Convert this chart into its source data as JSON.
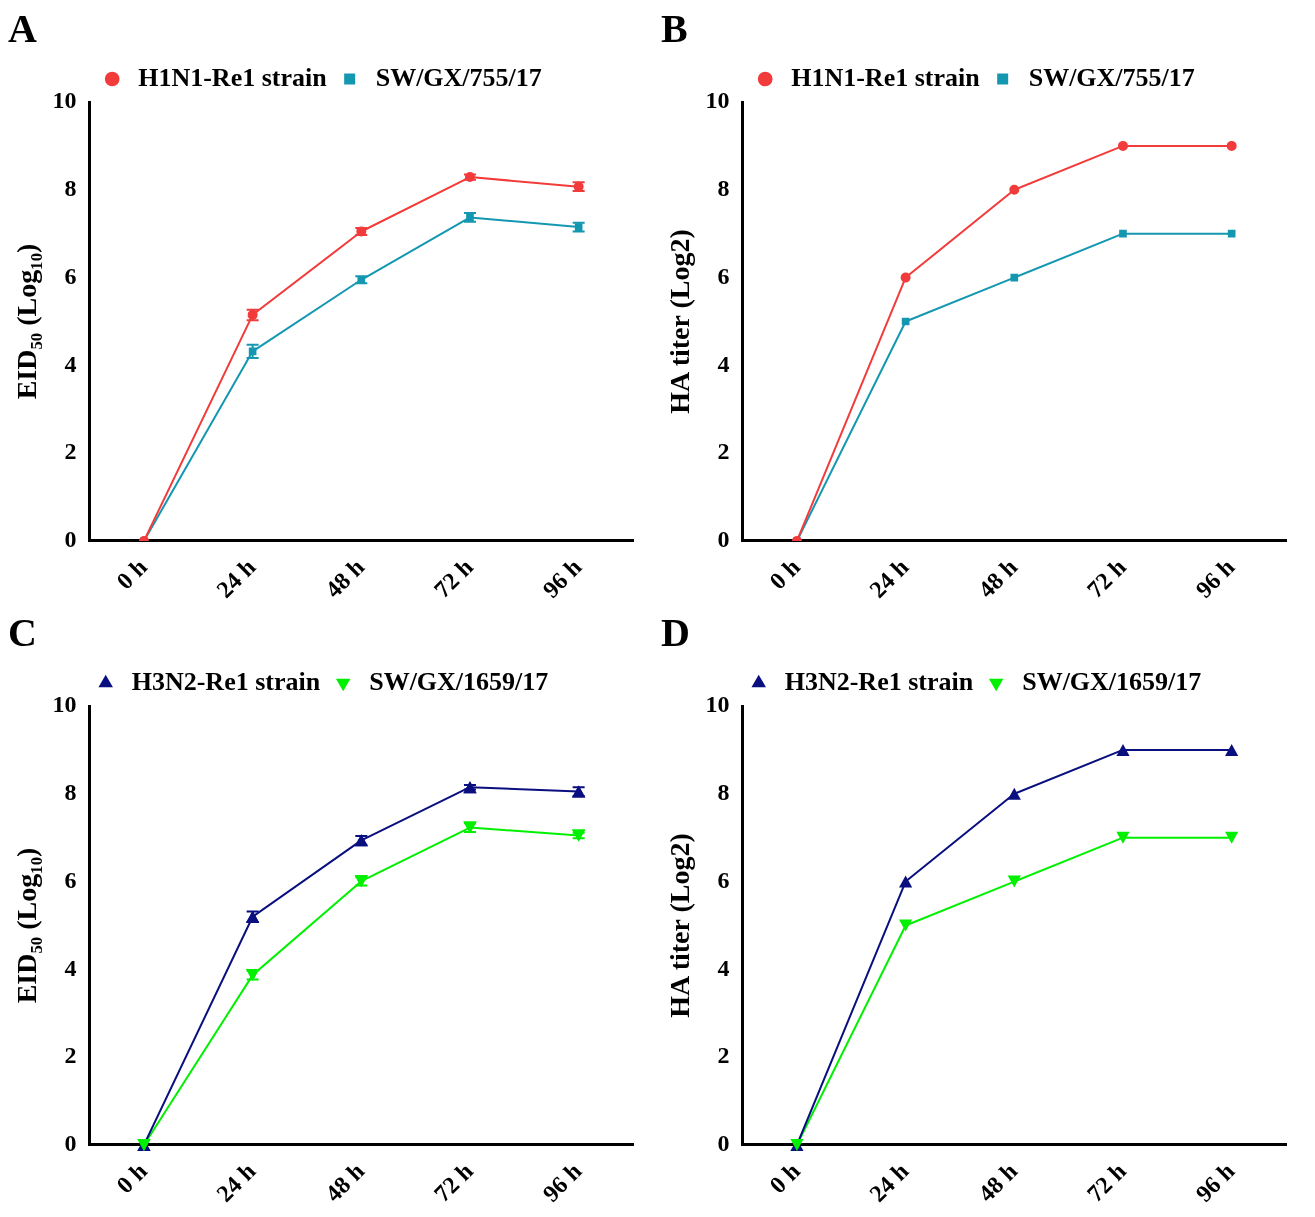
{
  "chart_data": [
    {
      "type": "line",
      "title": "A",
      "ylabel": "EID₅₀ (Log₁₀)",
      "categories": [
        "0 h",
        "24 h",
        "48 h",
        "72 h",
        "96 h"
      ],
      "ylim": [
        0,
        10
      ],
      "yticks": [
        0,
        2,
        4,
        6,
        8,
        10
      ],
      "legend": "top left",
      "grid": false,
      "line_style": "solid",
      "series": [
        {
          "name": "H1N1-Re1 strain",
          "color": "#f23b3b",
          "marker": "circle",
          "values": [
            0,
            5.15,
            7.05,
            8.29,
            8.07
          ],
          "errors": [
            null,
            0.12,
            0.08,
            0.06,
            0.1
          ]
        },
        {
          "name": "SW/GX/755/17",
          "color": "#1497b0",
          "marker": "square",
          "values": [
            0,
            4.32,
            5.95,
            7.37,
            7.15
          ],
          "errors": [
            null,
            0.15,
            0.08,
            0.1,
            0.1
          ]
        }
      ]
    },
    {
      "type": "line",
      "title": "B",
      "ylabel": "HA titer (Log2)",
      "categories": [
        "0 h",
        "24 h",
        "48 h",
        "72 h",
        "96 h"
      ],
      "ylim": [
        0,
        10
      ],
      "yticks": [
        0,
        2,
        4,
        6,
        8,
        10
      ],
      "legend": "top left",
      "grid": false,
      "line_style": "solid",
      "series": [
        {
          "name": "H1N1-Re1 strain",
          "color": "#f23b3b",
          "marker": "circle",
          "values": [
            0,
            6,
            8,
            9,
            9
          ]
        },
        {
          "name": "SW/GX/755/17",
          "color": "#1497b0",
          "marker": "square",
          "values": [
            0,
            5,
            6,
            7,
            7
          ]
        }
      ]
    },
    {
      "type": "line",
      "title": "C",
      "ylabel": "EID₅₀ (Log₁₀)",
      "categories": [
        "0 h",
        "24 h",
        "48 h",
        "72 h",
        "96 h"
      ],
      "ylim": [
        0,
        10
      ],
      "yticks": [
        0,
        2,
        4,
        6,
        8,
        10
      ],
      "legend": "top left",
      "grid": false,
      "line_style": "solid",
      "series": [
        {
          "name": "H3N2-Re1 strain",
          "color": "#0a0f80",
          "marker": "triangle",
          "values": [
            0,
            5.2,
            6.94,
            8.15,
            8.05
          ],
          "errors": [
            null,
            0.12,
            0.1,
            0.05,
            0.1
          ]
        },
        {
          "name": "SW/GX/1659/17",
          "color": "#00f000",
          "marker": "triangle-down",
          "values": [
            0,
            3.87,
            6.01,
            7.23,
            7.05
          ],
          "errors": [
            null,
            0.1,
            0.1,
            0.1,
            0.06
          ]
        }
      ]
    },
    {
      "type": "line",
      "title": "D",
      "ylabel": "HA titer (Log2)",
      "categories": [
        "0 h",
        "24 h",
        "48 h",
        "72 h",
        "96 h"
      ],
      "ylim": [
        0,
        10
      ],
      "yticks": [
        0,
        2,
        4,
        6,
        8,
        10
      ],
      "legend": "top left",
      "grid": false,
      "line_style": "solid",
      "series": [
        {
          "name": "H3N2-Re1 strain",
          "color": "#0a0f80",
          "marker": "triangle",
          "values": [
            0,
            6,
            8,
            9,
            9
          ]
        },
        {
          "name": "SW/GX/1659/17",
          "color": "#00f000",
          "marker": "triangle-down",
          "values": [
            0,
            5,
            6,
            7,
            7
          ]
        }
      ]
    }
  ]
}
